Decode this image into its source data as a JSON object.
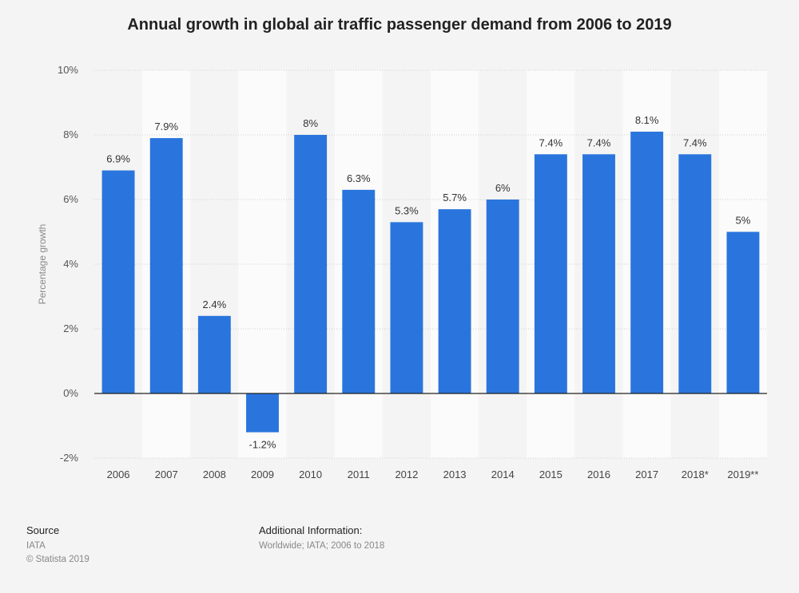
{
  "chart_data": {
    "type": "bar",
    "title": "Annual growth in global air traffic passenger demand from 2006 to 2019",
    "xlabel": "",
    "ylabel": "Percentage growth",
    "categories": [
      "2006",
      "2007",
      "2008",
      "2009",
      "2010",
      "2011",
      "2012",
      "2013",
      "2014",
      "2015",
      "2016",
      "2017",
      "2018*",
      "2019**"
    ],
    "values": [
      6.9,
      7.9,
      2.4,
      -1.2,
      8,
      6.3,
      5.3,
      5.7,
      6,
      7.4,
      7.4,
      8.1,
      7.4,
      5
    ],
    "value_labels": [
      "6.9%",
      "7.9%",
      "2.4%",
      "-1.2%",
      "8%",
      "6.3%",
      "5.3%",
      "5.7%",
      "6%",
      "7.4%",
      "7.4%",
      "8.1%",
      "7.4%",
      "5%"
    ],
    "ylim": [
      -2,
      10
    ],
    "yticks": [
      -2,
      0,
      2,
      4,
      6,
      8,
      10
    ],
    "ytick_labels": [
      "-2%",
      "0%",
      "2%",
      "4%",
      "6%",
      "8%",
      "10%"
    ],
    "grid": true,
    "bar_color": "#2a75dd"
  },
  "footer": {
    "source_heading": "Source",
    "source_lines": [
      "IATA",
      "© Statista 2019"
    ],
    "info_heading": "Additional Information:",
    "info_lines": [
      "Worldwide; IATA; 2006 to 2018"
    ]
  }
}
